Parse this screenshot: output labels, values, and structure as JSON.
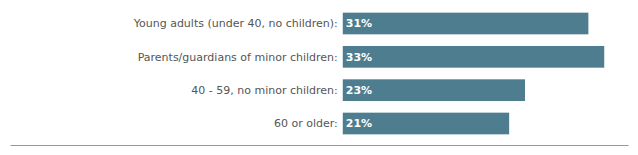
{
  "chart_data": {
    "type": "bar",
    "orientation": "horizontal",
    "categories": [
      "Young adults (under 40, no children):",
      "Parents/guardians of minor children:",
      "40 - 59, no minor children:",
      "60 or older:"
    ],
    "values": [
      31,
      33,
      23,
      21
    ],
    "value_labels": [
      " 31%",
      " 33%",
      " 23%",
      " 21%"
    ],
    "data_labels": true,
    "color": "#4d7d8e",
    "xlim": [
      -42,
      36
    ],
    "tick_labels": false,
    "grid": false
  }
}
